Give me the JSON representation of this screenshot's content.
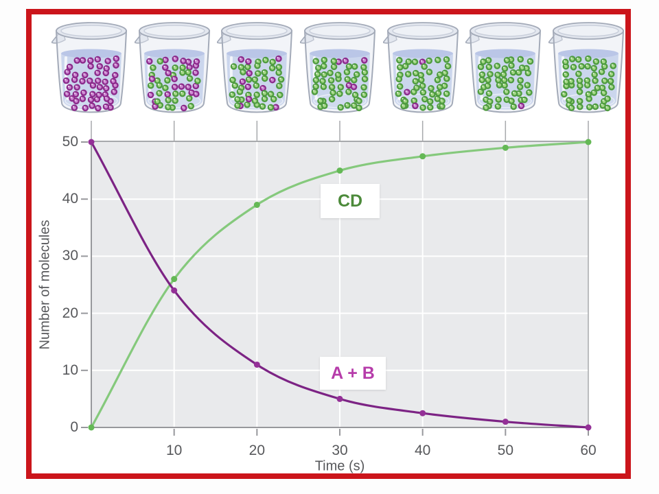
{
  "figure": {
    "description": "Reaction progress figure: seven beakers above a graph showing reactant molecules A+B converting to product CD over time",
    "frame_border_color": "#cb151b",
    "beakers": [
      {
        "time": 0,
        "purple_molecules": 50,
        "green_molecules": 0
      },
      {
        "time": 10,
        "purple_molecules": 24,
        "green_molecules": 26
      },
      {
        "time": 20,
        "purple_molecules": 11,
        "green_molecules": 39
      },
      {
        "time": 30,
        "purple_molecules": 5,
        "green_molecules": 45
      },
      {
        "time": 40,
        "purple_molecules": 3,
        "green_molecules": 47
      },
      {
        "time": 50,
        "purple_molecules": 1,
        "green_molecules": 49
      },
      {
        "time": 60,
        "purple_molecules": 0,
        "green_molecules": 50
      }
    ],
    "beaker_colors": {
      "glass_stroke": "#a3aab8",
      "glass_fill": "rgba(226,231,240,0.45)",
      "rim_fill": "#e3e7ef",
      "rim_inner_fill": "#eef1f6",
      "liquid_fill": "#c8d2ec",
      "liquid_surface": "#b4c1e4",
      "purple_ring": "#8c2b8c",
      "purple_center": "#cf8bd4",
      "green_ring": "#4f9c40",
      "green_center": "#a4d887"
    }
  },
  "chart_data": {
    "type": "line",
    "x": [
      0,
      10,
      20,
      30,
      40,
      50,
      60
    ],
    "series": [
      {
        "name": "CD",
        "values": [
          0,
          26,
          39,
          45,
          47.5,
          49,
          50
        ],
        "line_color": "#85c97c",
        "point_color": "#64b855",
        "label_color": "#4c8a3a"
      },
      {
        "name": "A + B",
        "values": [
          50,
          24,
          11,
          5,
          2.5,
          1,
          0
        ],
        "line_color": "#7c2384",
        "point_color": "#943097",
        "label_color": "#b63caa"
      }
    ],
    "xlabel": "Time (s)",
    "ylabel": "Number of molecules",
    "xlim": [
      0,
      60
    ],
    "ylim": [
      0,
      50
    ],
    "x_ticks": [
      10,
      20,
      30,
      40,
      50,
      60
    ],
    "y_ticks": [
      0,
      10,
      20,
      30,
      40,
      50
    ],
    "grid": true,
    "legend_position": "inline-labels",
    "plot_bg": "#e9eaec",
    "grid_color": "#ffffff",
    "axis_color": "#97989c",
    "tick_text_color": "#57585b"
  }
}
